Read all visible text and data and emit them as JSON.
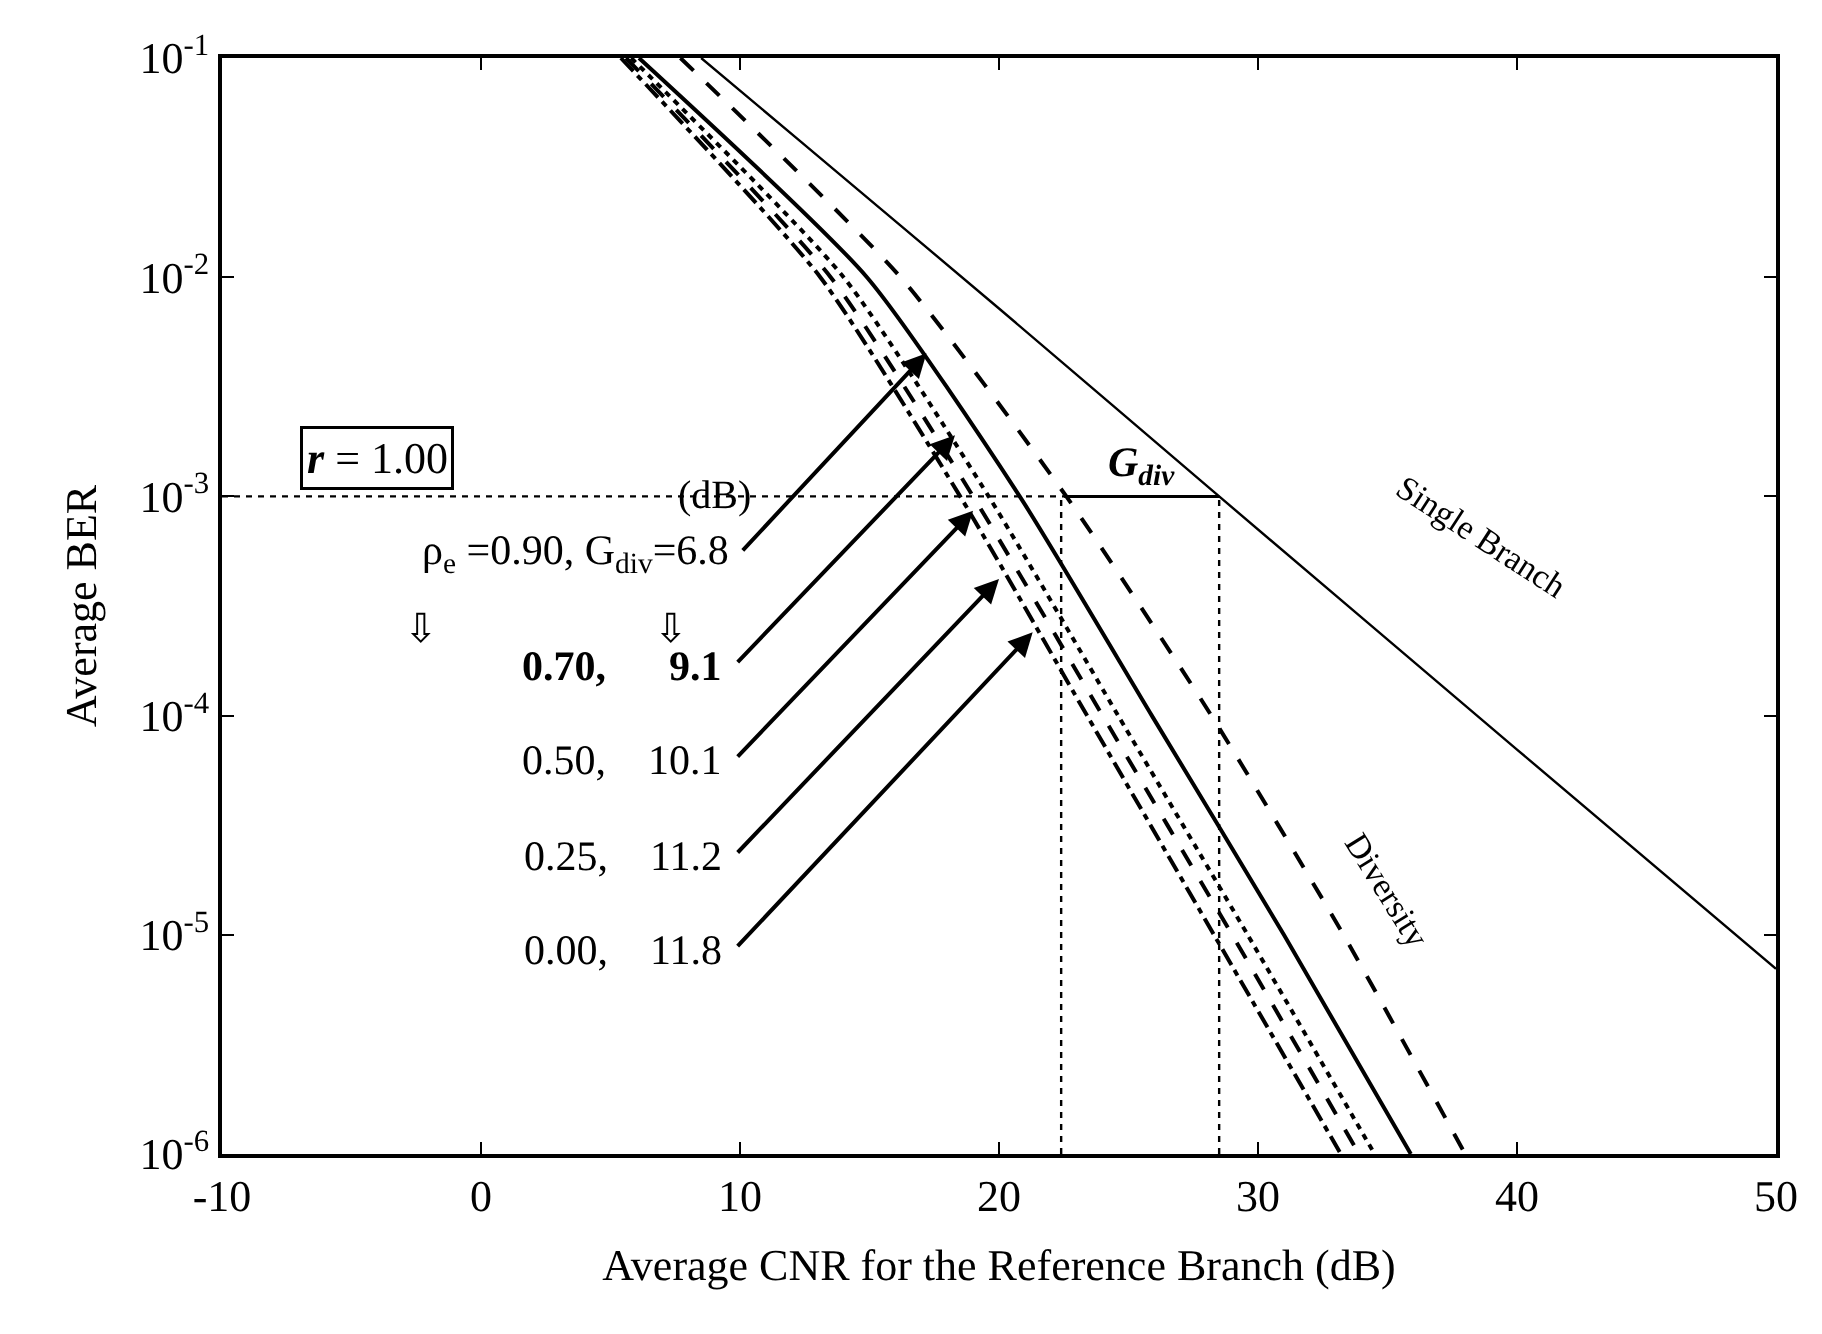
{
  "chart_data": {
    "type": "line",
    "xlabel": "Average CNR for the Reference Branch (dB)",
    "ylabel": "Average BER",
    "log": "y",
    "xlim": [
      -10,
      50
    ],
    "xticks": [
      -10,
      0,
      10,
      20,
      30,
      40,
      50
    ],
    "ylim": [
      1e-06,
      0.1
    ],
    "yticks": [
      {
        "value": 1e-06,
        "label": "10$^{-6}$"
      },
      {
        "value": 1e-05,
        "label": "10$^{-5}$"
      },
      {
        "value": 0.0001,
        "label": "10$^{-4}$"
      },
      {
        "value": 0.001,
        "label": "10$^{-3}$"
      },
      {
        "value": 0.01,
        "label": "10$^{-2}$"
      },
      {
        "value": 0.1,
        "label": "10$^{-1}$"
      }
    ],
    "series": [
      {
        "color": "#000000",
        "line_style": "solid",
        "x": [
          8.5,
          12.3,
          20,
          28.5,
          40,
          50
        ],
        "values": [
          0.1,
          0.042,
          0.0072,
          0.001,
          7e-05,
          7e-06
        ]
      },
      {
        "color": "#000000",
        "line_style": "dashed",
        "x": [
          7.7,
          16.2,
          22.6,
          28.2,
          33.3,
          38.0
        ],
        "values": [
          0.1,
          0.01,
          0.001,
          0.0001,
          1e-05,
          1e-06
        ]
      },
      {
        "color": "#000000",
        "line_style": "solid",
        "x": [
          6.1,
          14.9,
          20.8,
          25.9,
          31.0,
          35.9
        ],
        "values": [
          0.1,
          0.01,
          0.001,
          0.0001,
          1e-05,
          1e-06
        ]
      },
      {
        "color": "#000000",
        "line_style": "dotted",
        "x": [
          5.8,
          14.0,
          19.6,
          24.6,
          29.6,
          34.5
        ],
        "values": [
          0.1,
          0.01,
          0.001,
          0.0001,
          1e-05,
          1e-06
        ]
      },
      {
        "color": "#000000",
        "line_style": "dashed",
        "x": [
          5.6,
          13.5,
          19.0,
          24.0,
          29.0,
          33.9
        ],
        "values": [
          0.1,
          0.01,
          0.001,
          0.0001,
          1e-05,
          1e-06
        ]
      },
      {
        "color": "#000000",
        "line_style": "dashdot",
        "x": [
          5.4,
          13.1,
          18.5,
          23.4,
          28.3,
          33.2
        ],
        "values": [
          0.1,
          0.01,
          0.001,
          0.0001,
          1e-05,
          1e-06
        ]
      }
    ],
    "ref_lines": [
      {
        "axis": "y",
        "value": 0.001,
        "line_style": "dotted"
      },
      {
        "axis": "x",
        "value": 22.4,
        "line_style": "dotted"
      },
      {
        "axis": "x",
        "value": 28.5,
        "line_style": "dotted"
      }
    ],
    "annotations": [
      "r = 1.00",
      "(dB)",
      {
        "text": "ρ$_{e}$ =0.90, G$_{div}$=6.8",
        "x": 17.2,
        "y": 0.0045
      },
      {
        "text": "0.70,      9.1",
        "x": 18.3,
        "y": 0.0019
      },
      {
        "text": "0.50,    10.1",
        "x": 19.0,
        "y": 0.00086
      },
      {
        "text": "0.25,    11.2",
        "x": 20.0,
        "y": 0.00042
      },
      {
        "text": "0.00,    11.8",
        "x": 21.3,
        "y": 0.00024
      },
      "⇩",
      "⇩",
      {
        "text": "G$_{div}$",
        "x": 25.5,
        "y": 0.001
      },
      "Single Branch",
      "Diversity"
    ]
  }
}
